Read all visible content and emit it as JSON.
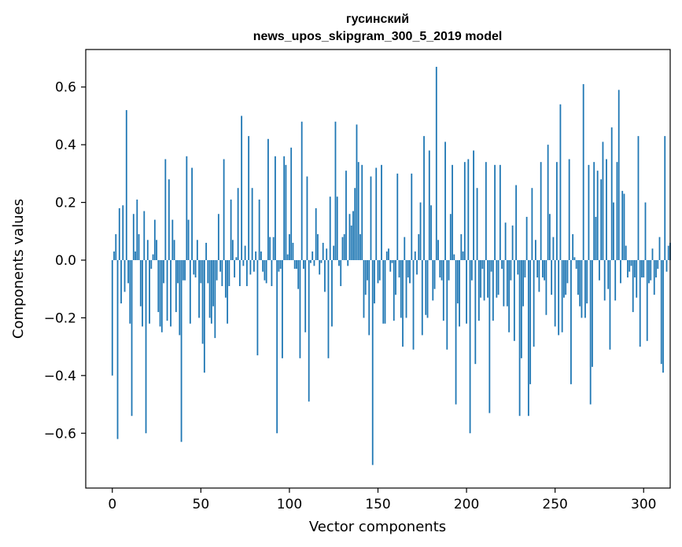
{
  "chart_data": {
    "type": "bar",
    "title_line1": "гусинский",
    "title_line2": "news_upos_skipgram_300_5_2019 model",
    "xlabel": "Vector components",
    "ylabel": "Components values",
    "xlim": [
      -15,
      315
    ],
    "ylim": [
      -0.79,
      0.73
    ],
    "xticks": [
      0,
      50,
      100,
      150,
      200,
      250,
      300
    ],
    "xtick_labels": [
      "0",
      "50",
      "100",
      "150",
      "200",
      "250",
      "300"
    ],
    "yticks": [
      -0.6,
      -0.4,
      -0.2,
      0.0,
      0.2,
      0.4,
      0.6
    ],
    "ytick_labels": [
      "−0.6",
      "−0.4",
      "−0.2",
      "0.0",
      "0.2",
      "0.4",
      "0.6"
    ],
    "bar_color": "#1f77b4",
    "values": [
      -0.4,
      0.03,
      0.09,
      -0.62,
      0.18,
      -0.15,
      0.19,
      -0.11,
      0.52,
      -0.08,
      -0.22,
      -0.54,
      0.16,
      0.03,
      0.21,
      0.09,
      -0.16,
      -0.23,
      0.17,
      -0.6,
      0.07,
      -0.22,
      -0.03,
      0.02,
      0.14,
      0.07,
      -0.18,
      -0.23,
      -0.25,
      -0.08,
      0.35,
      -0.21,
      0.28,
      -0.23,
      0.14,
      0.07,
      -0.18,
      -0.08,
      -0.26,
      -0.63,
      -0.07,
      -0.07,
      0.36,
      0.14,
      -0.22,
      0.32,
      -0.05,
      -0.06,
      0.07,
      -0.2,
      -0.08,
      -0.29,
      -0.39,
      0.06,
      -0.08,
      -0.2,
      -0.22,
      -0.16,
      -0.27,
      -0.07,
      0.16,
      -0.04,
      -0.09,
      0.35,
      -0.13,
      -0.22,
      -0.09,
      0.21,
      0.07,
      -0.06,
      0.01,
      0.25,
      -0.09,
      0.5,
      -0.02,
      0.05,
      -0.09,
      0.43,
      -0.05,
      0.25,
      -0.04,
      0.03,
      -0.33,
      0.21,
      0.03,
      -0.04,
      -0.07,
      -0.08,
      0.42,
      0.08,
      -0.09,
      0.08,
      0.36,
      -0.6,
      -0.04,
      -0.03,
      -0.34,
      0.36,
      0.33,
      0.02,
      0.09,
      0.39,
      0.06,
      -0.03,
      -0.03,
      -0.1,
      -0.34,
      0.48,
      -0.03,
      -0.25,
      0.29,
      -0.49,
      -0.01,
      0.03,
      -0.02,
      0.18,
      0.09,
      -0.05,
      -0.01,
      0.06,
      -0.11,
      0.04,
      -0.34,
      0.22,
      -0.23,
      0.05,
      0.48,
      0.22,
      -0.02,
      -0.09,
      0.08,
      0.09,
      0.31,
      -0.02,
      0.16,
      0.12,
      0.17,
      0.25,
      0.47,
      0.34,
      0.09,
      0.33,
      -0.2,
      -0.12,
      -0.07,
      -0.26,
      0.29,
      -0.71,
      -0.15,
      0.32,
      -0.08,
      -0.07,
      0.33,
      -0.22,
      -0.22,
      0.03,
      0.04,
      -0.04,
      -0.01,
      -0.21,
      -0.12,
      0.3,
      -0.06,
      -0.2,
      -0.3,
      0.08,
      -0.2,
      -0.06,
      -0.08,
      0.3,
      -0.31,
      0.03,
      -0.05,
      0.09,
      0.2,
      -0.26,
      0.43,
      -0.19,
      -0.2,
      0.38,
      0.19,
      -0.14,
      -0.1,
      0.67,
      0.07,
      -0.06,
      -0.07,
      -0.21,
      0.41,
      -0.31,
      -0.07,
      0.16,
      0.33,
      0.02,
      -0.5,
      -0.15,
      -0.23,
      0.09,
      0.03,
      0.34,
      -0.22,
      0.35,
      -0.6,
      -0.07,
      0.38,
      -0.36,
      0.25,
      -0.21,
      -0.13,
      -0.03,
      -0.14,
      0.34,
      -0.13,
      -0.53,
      -0.04,
      -0.21,
      0.33,
      -0.13,
      -0.12,
      0.33,
      -0.03,
      -0.16,
      0.13,
      -0.16,
      -0.25,
      -0.07,
      0.12,
      -0.28,
      0.26,
      -0.05,
      -0.54,
      -0.34,
      -0.16,
      -0.06,
      0.15,
      -0.54,
      -0.43,
      0.25,
      -0.3,
      0.07,
      -0.06,
      -0.11,
      0.34,
      -0.06,
      -0.07,
      -0.19,
      0.4,
      0.16,
      -0.12,
      0.08,
      -0.23,
      0.34,
      -0.26,
      0.54,
      -0.25,
      -0.13,
      -0.12,
      -0.08,
      0.35,
      -0.43,
      0.09,
      0.01,
      -0.03,
      -0.12,
      -0.16,
      -0.2,
      0.61,
      -0.2,
      -0.15,
      0.33,
      -0.5,
      -0.37,
      0.34,
      0.15,
      0.31,
      -0.07,
      0.28,
      0.41,
      -0.14,
      0.35,
      -0.1,
      -0.31,
      0.46,
      0.2,
      -0.14,
      0.34,
      0.59,
      -0.08,
      0.24,
      0.23,
      0.05,
      -0.06,
      -0.04,
      -0.02,
      -0.18,
      -0.06,
      -0.13,
      0.43,
      -0.3,
      -0.06,
      -0.06,
      0.2,
      -0.28,
      -0.08,
      -0.07,
      0.04,
      -0.12,
      -0.06,
      -0.03,
      0.08,
      -0.36,
      -0.39,
      0.43,
      -0.04,
      0.05,
      0.06
    ]
  }
}
